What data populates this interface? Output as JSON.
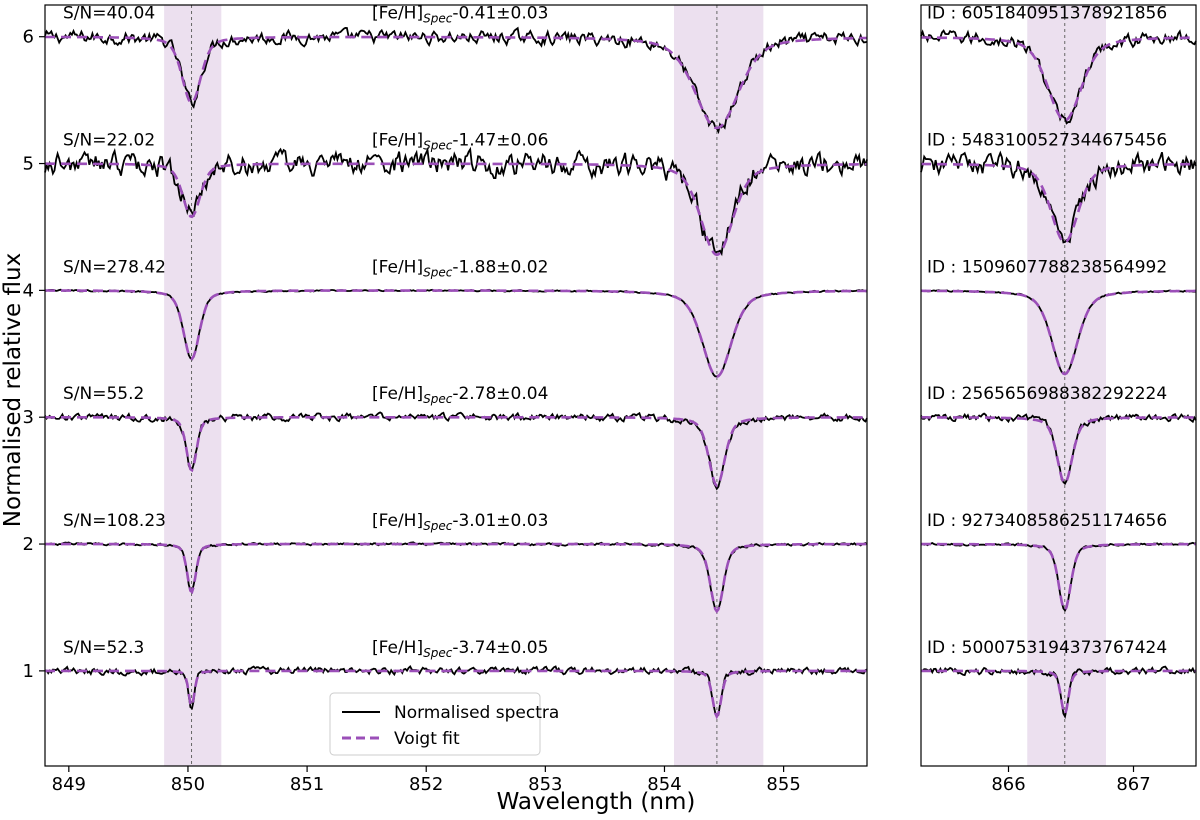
{
  "chart_data": {
    "type": "line",
    "ylabel": "Normalised relative flux",
    "xlabel": "Wavelength (nm)",
    "legend": {
      "placement": "bottom-center",
      "entries": [
        "Normalised spectra",
        "Voigt fit"
      ]
    },
    "colors": {
      "spectrum": "#000000",
      "fit": "#9b4fb8",
      "band": "#ece0ef",
      "marker": "#666666"
    },
    "ylim": [
      0.25,
      6.25
    ],
    "yticks": [
      "1",
      "2",
      "3",
      "4",
      "5",
      "6"
    ],
    "panels": [
      {
        "name": "left",
        "xlim": [
          848.8,
          855.7
        ],
        "xticks": [
          "849",
          "850",
          "851",
          "852",
          "853",
          "854",
          "855"
        ],
        "bands": [
          [
            849.8,
            850.28
          ],
          [
            854.08,
            854.83
          ]
        ],
        "lines": [
          850.03,
          854.44
        ]
      },
      {
        "name": "right",
        "xlim": [
          865.3,
          867.5
        ],
        "xticks": [
          "866",
          "867"
        ],
        "bands": [
          [
            866.15,
            866.78
          ]
        ],
        "lines": [
          866.45
        ]
      }
    ],
    "series": [
      {
        "offset": 6,
        "snr": "S/N=40.04",
        "feh_prefix": "[Fe/H]",
        "feh_sub": "Spec",
        "feh_value": "-0.41±0.03",
        "id": "ID : 6051840951378921856",
        "depths": [
          0.52,
          0.72,
          0.66
        ],
        "widths": [
          0.13,
          0.3,
          0.22
        ],
        "noise": 0.04
      },
      {
        "offset": 5,
        "snr": "S/N=22.02",
        "feh_prefix": "[Fe/H]",
        "feh_sub": "Spec",
        "feh_value": "-1.47±0.06",
        "id": "ID : 5483100527344675456",
        "depths": [
          0.42,
          0.72,
          0.62
        ],
        "widths": [
          0.12,
          0.22,
          0.18
        ],
        "noise": 0.07
      },
      {
        "offset": 4,
        "snr": "S/N=278.42",
        "feh_prefix": "[Fe/H]",
        "feh_sub": "Spec",
        "feh_value": "-1.88±0.02",
        "id": "ID : 1509607788238564992",
        "depths": [
          0.54,
          0.68,
          0.66
        ],
        "widths": [
          0.11,
          0.2,
          0.17
        ],
        "noise": 0.005
      },
      {
        "offset": 3,
        "snr": "S/N=55.2",
        "feh_prefix": "[Fe/H]",
        "feh_sub": "Spec",
        "feh_value": "-2.78±0.04",
        "id": "ID : 2565656988382292224",
        "depths": [
          0.42,
          0.54,
          0.52
        ],
        "widths": [
          0.07,
          0.11,
          0.1
        ],
        "noise": 0.022
      },
      {
        "offset": 2,
        "snr": "S/N=108.23",
        "feh_prefix": "[Fe/H]",
        "feh_sub": "Spec",
        "feh_value": "-3.01±0.03",
        "id": "ID : 9273408586251174656",
        "depths": [
          0.38,
          0.53,
          0.52
        ],
        "widths": [
          0.06,
          0.09,
          0.08
        ],
        "noise": 0.008
      },
      {
        "offset": 1,
        "snr": "S/N=52.3",
        "feh_prefix": "[Fe/H]",
        "feh_sub": "Spec",
        "feh_value": "-3.74±0.05",
        "id": "ID : 5000753194373767424",
        "depths": [
          0.28,
          0.36,
          0.34
        ],
        "widths": [
          0.04,
          0.06,
          0.05
        ],
        "noise": 0.022
      }
    ]
  }
}
